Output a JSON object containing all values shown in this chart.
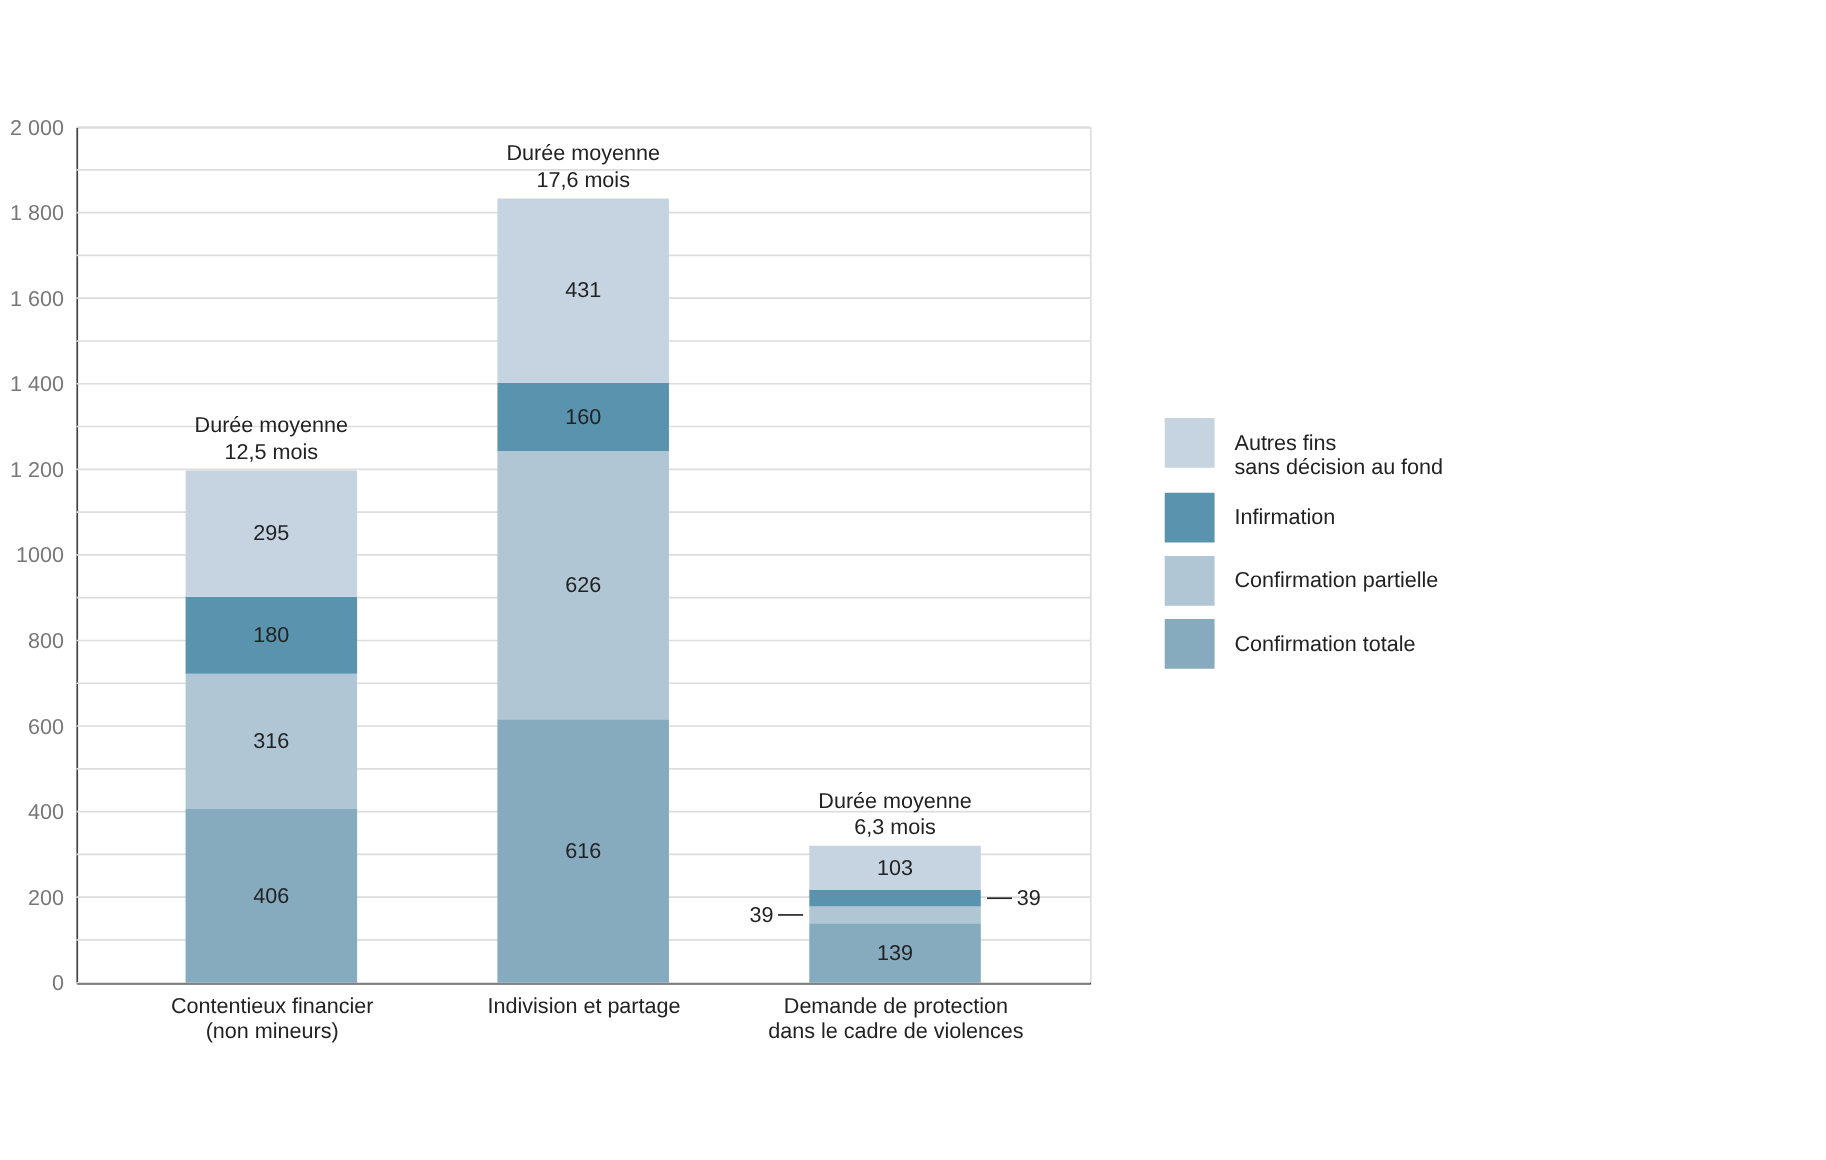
{
  "chart_data": {
    "type": "bar",
    "stacked": true,
    "categories": [
      "Contentieux financier\n(non mineurs)",
      "Indivision et partage",
      "Demande de protection\ndans le cadre de violences"
    ],
    "series": [
      {
        "name": "Confirmation totale",
        "color": "#86aabe",
        "values": [
          406,
          616,
          139
        ]
      },
      {
        "name": "Confirmation partielle",
        "color": "#b1c6d4",
        "values": [
          316,
          626,
          39
        ]
      },
      {
        "name": "Infirmation",
        "color": "#5a93ae",
        "values": [
          180,
          160,
          39
        ]
      },
      {
        "name": "Autres fins\nsans décision au fond",
        "color": "#c6d4e1",
        "values": [
          295,
          431,
          103
        ]
      }
    ],
    "ylim": [
      0,
      2000
    ],
    "yticks": [
      0,
      {
        "value": 100,
        "label": null
      },
      200,
      {
        "value": 300,
        "label": null
      },
      400,
      {
        "value": 500,
        "label": null
      },
      600,
      {
        "value": 700,
        "label": null
      },
      800,
      {
        "value": 900,
        "label": null
      },
      1000,
      {
        "value": 1100,
        "label": null
      },
      {
        "value": 1200,
        "label": "1 200"
      },
      {
        "value": 1300,
        "label": null
      },
      {
        "value": 1400,
        "label": "1 400"
      },
      {
        "value": 1500,
        "label": null
      },
      {
        "value": 1600,
        "label": "1 600"
      },
      {
        "value": 1700,
        "label": null
      },
      {
        "value": 1800,
        "label": "1 800"
      },
      {
        "value": 1900,
        "label": null
      },
      {
        "value": 2000,
        "label": "2 000"
      }
    ],
    "grid": "y",
    "legend": "right",
    "data_labels": true,
    "annotations": [
      {
        "text": "Durée moyenne\n12,5 mois",
        "x": "Contentieux financier\n(non mineurs)",
        "y": 1197
      },
      {
        "text": "Durée moyenne\n17,6 mois",
        "x": "Indivision et partage",
        "y": 1833
      },
      {
        "text": "Durée moyenne\n6,3 mois",
        "x": "Demande de protection\ndans le cadre de violences",
        "y": 320
      }
    ]
  }
}
